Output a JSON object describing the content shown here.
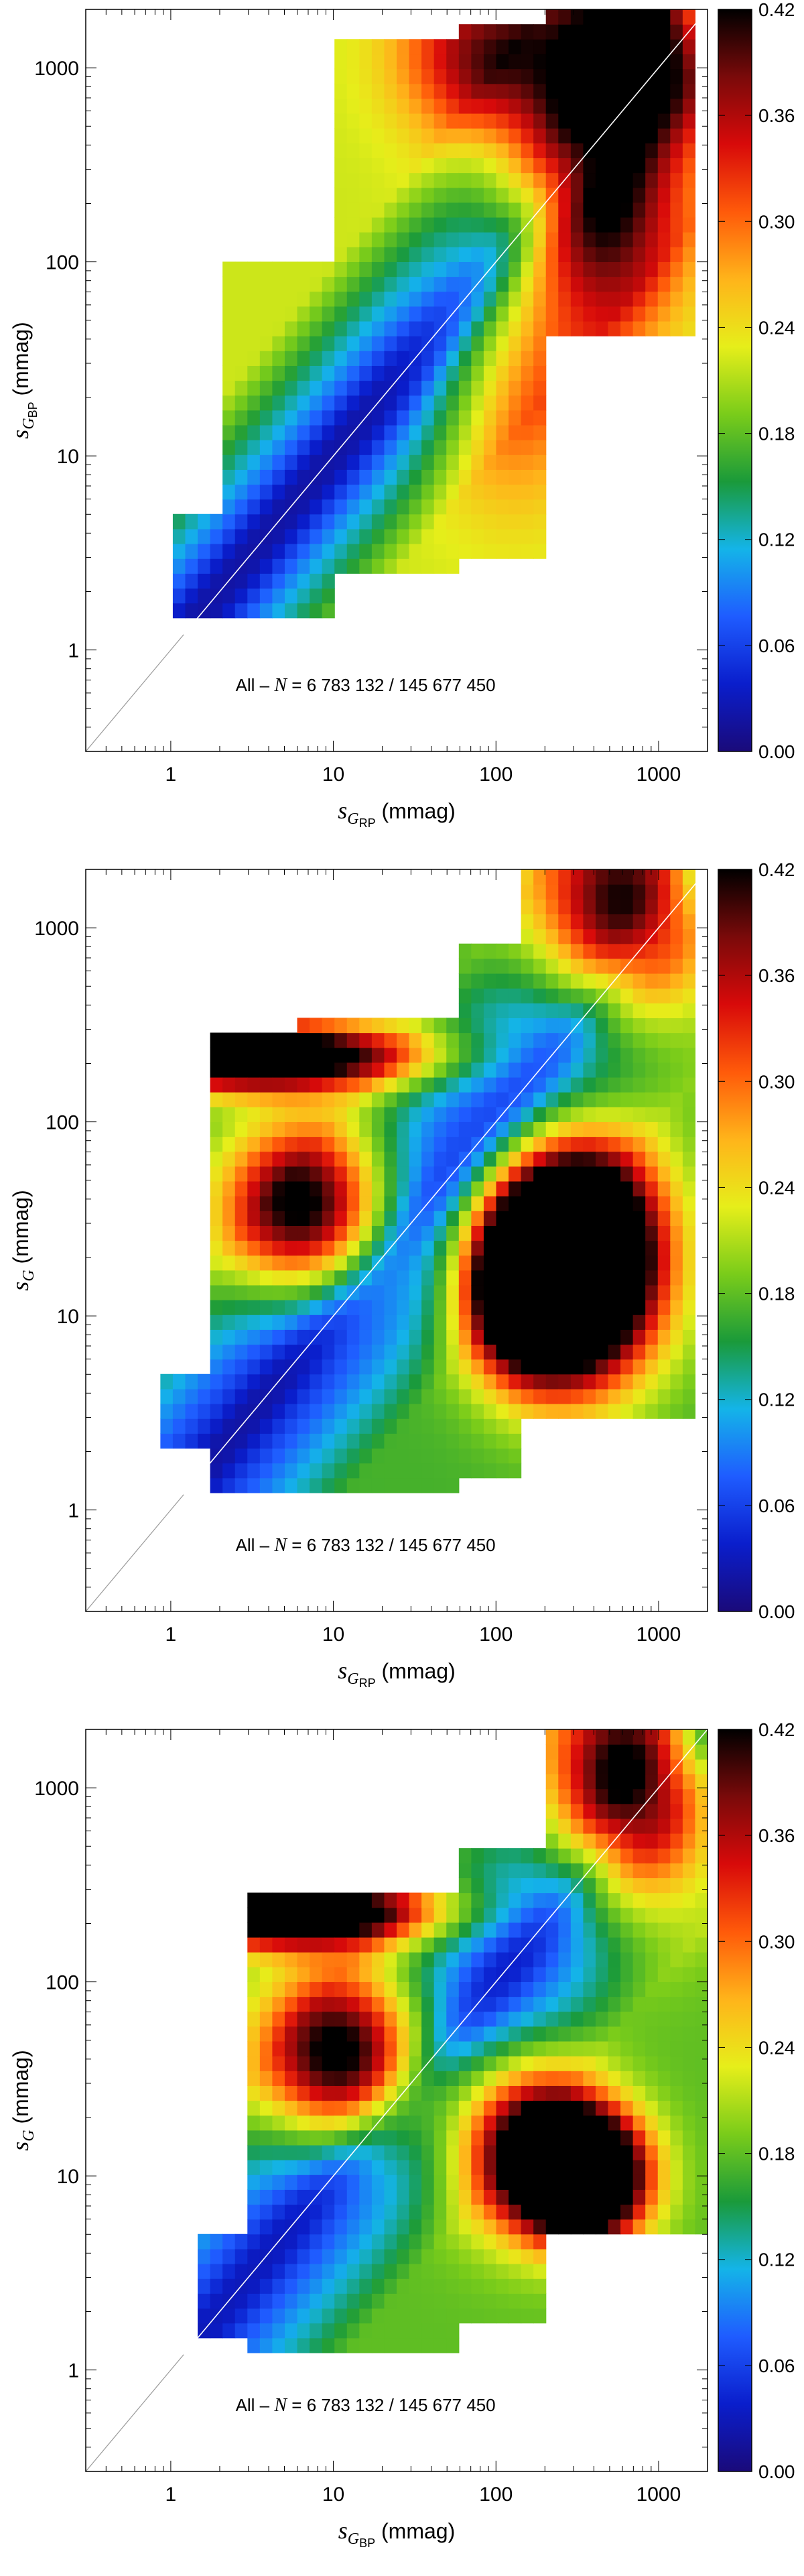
{
  "figure": {
    "background": "#ffffff",
    "colormap": [
      "#1a0a7a",
      "#0a1ecc",
      "#1f5cff",
      "#14b4e8",
      "#1a9a3a",
      "#7acc1a",
      "#e6ee1a",
      "#ffb41a",
      "#ff5a0a",
      "#d80a0a",
      "#7a0a0a",
      "#000000"
    ],
    "diagonal_color": "#ffffff"
  },
  "chart_data": [
    {
      "type": "heatmap",
      "title": "",
      "annotation": {
        "prefix": "All – ",
        "n_symbol": "N",
        "text": " = 6 783 132 / 145 677 450"
      },
      "xlabel": {
        "symbol": "s",
        "sub": "G",
        "subsub": "RP",
        "unit": " (mmag)"
      },
      "ylabel": {
        "symbol": "s",
        "sub": "G",
        "subsub": "BP",
        "unit": " (mmag)"
      },
      "xscale": "log",
      "yscale": "log",
      "xlim": [
        0.3,
        2000
      ],
      "ylim": [
        0.3,
        2000
      ],
      "xticks": [
        {
          "v": 1,
          "label": "1"
        },
        {
          "v": 10,
          "label": "10"
        },
        {
          "v": 100,
          "label": "100"
        },
        {
          "v": 1000,
          "label": "1000"
        }
      ],
      "yticks": [
        {
          "v": 1,
          "label": "1"
        },
        {
          "v": 10,
          "label": "10"
        },
        {
          "v": 100,
          "label": "100"
        },
        {
          "v": 1000,
          "label": "1000"
        }
      ],
      "diagonal": true,
      "colorbar": {
        "min": 0.0,
        "max": 0.42,
        "ticks": [
          "0.00",
          "0.06",
          "0.12",
          "0.18",
          "0.24",
          "0.30",
          "0.36",
          "0.42"
        ]
      },
      "bins": 50,
      "model": {
        "support": [
          {
            "xr": [
              1,
              2
            ],
            "ylo": 1.5,
            "yhi": 5
          },
          {
            "xr": [
              2,
              10
            ],
            "ylo": 1.5,
            "yhi": 100
          },
          {
            "xr": [
              10,
              60
            ],
            "ylo": 2.5,
            "yhi": 1500
          },
          {
            "xr": [
              60,
              200
            ],
            "ylo": 3,
            "yhi": 1800
          },
          {
            "xr": [
              200,
              1800
            ],
            "ylo": 40,
            "yhi": 2000
          }
        ],
        "features": [
          {
            "cx": 130,
            "cy": 30,
            "sx": 0.35,
            "sy": 0.5,
            "amp": 0.1
          },
          {
            "cx": 400,
            "cy": 300,
            "sx": 0.35,
            "sy": 0.5,
            "amp": 0.35
          },
          {
            "cx": 1000,
            "cy": 1300,
            "sx": 0.35,
            "sy": 0.35,
            "amp": 0.35
          },
          {
            "cx": 80,
            "cy": 1200,
            "sx": 0.35,
            "sy": 0.3,
            "amp": 0.15
          }
        ],
        "diag_base": 0.02,
        "diag_slope": 0.2,
        "diag_width": 0.12
      }
    },
    {
      "type": "heatmap",
      "title": "",
      "annotation": {
        "prefix": "All – ",
        "n_symbol": "N",
        "text": " = 6 783 132 / 145 677 450"
      },
      "xlabel": {
        "symbol": "s",
        "sub": "G",
        "subsub": "RP",
        "unit": " (mmag)"
      },
      "ylabel": {
        "symbol": "s",
        "sub": "G",
        "subsub": "",
        "unit": " (mmag)"
      },
      "xscale": "log",
      "yscale": "log",
      "xlim": [
        0.3,
        2000
      ],
      "ylim": [
        0.3,
        2000
      ],
      "xticks": [
        {
          "v": 1,
          "label": "1"
        },
        {
          "v": 10,
          "label": "10"
        },
        {
          "v": 100,
          "label": "100"
        },
        {
          "v": 1000,
          "label": "1000"
        }
      ],
      "yticks": [
        {
          "v": 1,
          "label": "1"
        },
        {
          "v": 10,
          "label": "10"
        },
        {
          "v": 100,
          "label": "100"
        },
        {
          "v": 1000,
          "label": "1000"
        }
      ],
      "diagonal": true,
      "colorbar": {
        "min": 0.0,
        "max": 0.42,
        "ticks": [
          "0.00",
          "0.06",
          "0.12",
          "0.18",
          "0.24",
          "0.30",
          "0.36",
          "0.42"
        ]
      },
      "bins": 50,
      "model": {
        "support": [
          {
            "xr": [
              0.9,
              1.8
            ],
            "ylo": 2.2,
            "yhi": 5
          },
          {
            "xr": [
              1.8,
              6
            ],
            "ylo": 1.3,
            "yhi": 300
          },
          {
            "xr": [
              6,
              60
            ],
            "ylo": 1.3,
            "yhi": 350
          },
          {
            "xr": [
              60,
              150
            ],
            "ylo": 1.5,
            "yhi": 800
          },
          {
            "xr": [
              150,
              1800
            ],
            "ylo": 3,
            "yhi": 1900
          }
        ],
        "features": [
          {
            "cx": 7,
            "cy": 35,
            "sx": 0.35,
            "sy": 0.3,
            "amp": 0.3
          },
          {
            "cx": 3,
            "cy": 220,
            "sx": 0.7,
            "sy": 0.12,
            "amp": 0.38
          },
          {
            "cx": 300,
            "cy": 20,
            "sx": 0.35,
            "sy": 0.4,
            "amp": 0.6
          },
          {
            "cx": 150,
            "cy": 15,
            "sx": 0.25,
            "sy": 0.3,
            "amp": 0.3
          },
          {
            "cx": 700,
            "cy": 1200,
            "sx": 0.4,
            "sy": 0.4,
            "amp": 0.35
          }
        ],
        "diag_base": 0.02,
        "diag_slope": 0.15,
        "diag_width": 0.1
      }
    },
    {
      "type": "heatmap",
      "title": "",
      "annotation": {
        "prefix": "All – ",
        "n_symbol": "N",
        "text": " = 6 783 132 / 145 677 450"
      },
      "xlabel": {
        "symbol": "s",
        "sub": "G",
        "subsub": "BP",
        "unit": " (mmag)"
      },
      "ylabel": {
        "symbol": "s",
        "sub": "G",
        "subsub": "",
        "unit": " (mmag)"
      },
      "xscale": "log",
      "yscale": "log",
      "xlim": [
        0.3,
        2000
      ],
      "ylim": [
        0.3,
        2000
      ],
      "xticks": [
        {
          "v": 1,
          "label": "1"
        },
        {
          "v": 10,
          "label": "10"
        },
        {
          "v": 100,
          "label": "100"
        },
        {
          "v": 1000,
          "label": "1000"
        }
      ],
      "yticks": [
        {
          "v": 1,
          "label": "1"
        },
        {
          "v": 10,
          "label": "10"
        },
        {
          "v": 100,
          "label": "100"
        },
        {
          "v": 1000,
          "label": "1000"
        }
      ],
      "diagonal": true,
      "colorbar": {
        "min": 0.0,
        "max": 0.42,
        "ticks": [
          "0.00",
          "0.06",
          "0.12",
          "0.18",
          "0.24",
          "0.30",
          "0.36",
          "0.42"
        ]
      },
      "bins": 50,
      "model": {
        "support": [
          {
            "xr": [
              1.5,
              3
            ],
            "ylo": 1.5,
            "yhi": 5
          },
          {
            "xr": [
              3,
              60
            ],
            "ylo": 1.3,
            "yhi": 300
          },
          {
            "xr": [
              60,
              200
            ],
            "ylo": 1.8,
            "yhi": 500
          },
          {
            "xr": [
              200,
              2000
            ],
            "ylo": 5,
            "yhi": 1900
          }
        ],
        "features": [
          {
            "cx": 12,
            "cy": 40,
            "sx": 0.35,
            "sy": 0.3,
            "amp": 0.32
          },
          {
            "cx": 5,
            "cy": 230,
            "sx": 0.6,
            "sy": 0.12,
            "amp": 0.38
          },
          {
            "cx": 350,
            "cy": 10,
            "sx": 0.25,
            "sy": 0.22,
            "amp": 0.5
          },
          {
            "cx": 150,
            "cy": 15,
            "sx": 0.3,
            "sy": 0.3,
            "amp": 0.25
          },
          {
            "cx": 700,
            "cy": 1000,
            "sx": 0.35,
            "sy": 0.4,
            "amp": 0.38
          }
        ],
        "diag_base": 0.03,
        "diag_slope": 0.15,
        "diag_width": 0.1
      }
    }
  ]
}
